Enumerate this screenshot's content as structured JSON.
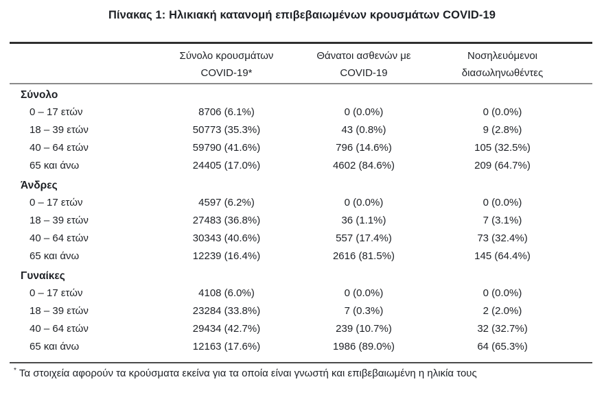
{
  "title": "Πίνακας 1: Ηλικιακή κατανομή επιβεβαιωμένων κρουσμάτων COVID-19",
  "colors": {
    "text": "#1d2025",
    "rule_dark": "#2f2f2f",
    "rule_gray": "#8a8a8a"
  },
  "table": {
    "columns": [
      {
        "line1": "Σύνολο κρουσμάτων",
        "line2": "COVID-19*"
      },
      {
        "line1": "Θάνατοι ασθενών με",
        "line2": "COVID-19"
      },
      {
        "line1": "Νοσηλευόμενοι",
        "line2": "διασωληνωθέντες"
      }
    ],
    "sections": [
      {
        "label": "Σύνολο",
        "rows": [
          {
            "age": "0 – 17 ετών",
            "cases": "8706 (6.1%)",
            "deaths": "0 (0.0%)",
            "intubated": "0 (0.0%)"
          },
          {
            "age": "18 – 39 ετών",
            "cases": "50773 (35.3%)",
            "deaths": "43 (0.8%)",
            "intubated": "9 (2.8%)"
          },
          {
            "age": "40 – 64 ετών",
            "cases": "59790 (41.6%)",
            "deaths": "796 (14.6%)",
            "intubated": "105 (32.5%)"
          },
          {
            "age": "65 και άνω",
            "cases": "24405 (17.0%)",
            "deaths": "4602 (84.6%)",
            "intubated": "209 (64.7%)"
          }
        ]
      },
      {
        "label": "Άνδρες",
        "rows": [
          {
            "age": "0 – 17 ετών",
            "cases": "4597 (6.2%)",
            "deaths": "0 (0.0%)",
            "intubated": "0 (0.0%)"
          },
          {
            "age": "18 – 39 ετών",
            "cases": "27483 (36.8%)",
            "deaths": "36 (1.1%)",
            "intubated": "7 (3.1%)"
          },
          {
            "age": "40 – 64 ετών",
            "cases": "30343 (40.6%)",
            "deaths": "557 (17.4%)",
            "intubated": "73 (32.4%)"
          },
          {
            "age": "65 και άνω",
            "cases": "12239 (16.4%)",
            "deaths": "2616 (81.5%)",
            "intubated": "145 (64.4%)"
          }
        ]
      },
      {
        "label": "Γυναίκες",
        "rows": [
          {
            "age": "0 – 17 ετών",
            "cases": "4108 (6.0%)",
            "deaths": "0 (0.0%)",
            "intubated": "0 (0.0%)"
          },
          {
            "age": "18 – 39 ετών",
            "cases": "23284 (33.8%)",
            "deaths": "7 (0.3%)",
            "intubated": "2 (2.0%)"
          },
          {
            "age": "40 – 64 ετών",
            "cases": "29434 (42.7%)",
            "deaths": "239 (10.7%)",
            "intubated": "32 (32.7%)"
          },
          {
            "age": "65 και άνω",
            "cases": "12163 (17.6%)",
            "deaths": "1986 (89.0%)",
            "intubated": "64 (65.3%)"
          }
        ]
      }
    ]
  },
  "footnote": {
    "marker": "*",
    "text": "Τα στοιχεία αφορούν τα κρούσματα εκείνα για τα οποία είναι γνωστή και επιβεβαιωμένη η ηλικία τους"
  }
}
